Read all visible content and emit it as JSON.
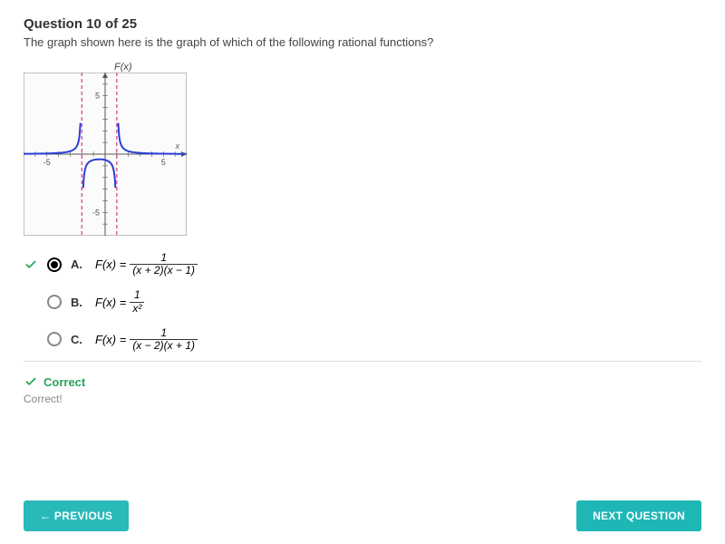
{
  "question": {
    "header": "Question 10 of 25",
    "prompt": "The graph shown here is the graph of which of the following rational functions?",
    "fx_label": "F(x)"
  },
  "graph": {
    "type": "line",
    "width": 180,
    "height": 180,
    "background_color": "#fbfbfb",
    "border_color": "#888888",
    "axis_color": "#555555",
    "grid_color": "#dddddd",
    "axis_label_color": "#555555",
    "axis_label_fontsize": 9,
    "xlim": [
      -7,
      7
    ],
    "ylim": [
      -7,
      7
    ],
    "xtick_step": 1,
    "ytick_step": 1,
    "tick_labels_x": [
      -5,
      5
    ],
    "tick_labels_y": [
      -5,
      5
    ],
    "asymptotes": {
      "color": "#d23a8a",
      "dash": "4,3",
      "width": 1.2,
      "vertical_x": [
        -2,
        1
      ]
    },
    "curve": {
      "color": "#2b3fd6",
      "width": 2,
      "segments": [
        {
          "x_from": -7,
          "x_to": -2.12,
          "step": 0.08
        },
        {
          "x_from": -1.88,
          "x_to": 0.88,
          "step": 0.04
        },
        {
          "x_from": 1.12,
          "x_to": 7,
          "step": 0.08
        }
      ],
      "formula": "1/((x+2)*(x-1))"
    }
  },
  "answers": {
    "selected_index": 0,
    "options": [
      {
        "key": "A.",
        "lhs": "F(x) =",
        "num": "1",
        "den": "(x + 2)(x − 1)"
      },
      {
        "key": "B.",
        "lhs": "F(x) =",
        "num": "1",
        "den": "x²"
      },
      {
        "key": "C.",
        "lhs": "F(x) =",
        "num": "1",
        "den": "(x − 2)(x + 1)"
      }
    ]
  },
  "feedback": {
    "title": "Correct",
    "sub": "Correct!"
  },
  "nav": {
    "previous": "← PREVIOUS",
    "next": "NEXT QUESTION"
  },
  "colors": {
    "accent": "#1fb6b6",
    "correct": "#2aa35a"
  }
}
